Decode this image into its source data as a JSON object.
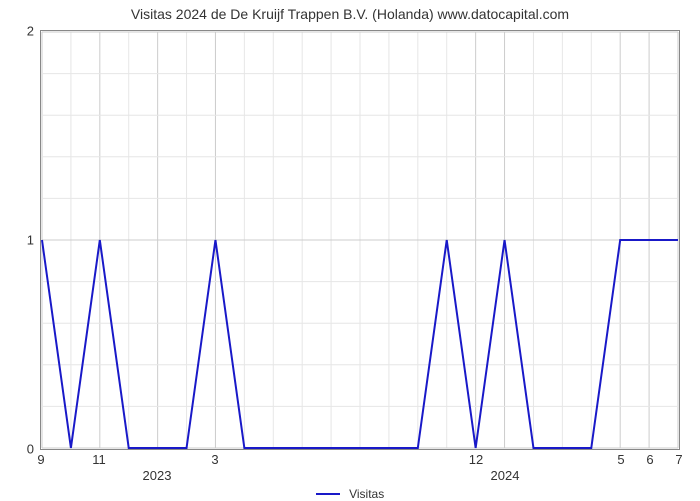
{
  "chart": {
    "type": "line",
    "title": "Visitas 2024 de De Kruijf Trappen B.V. (Holanda) www.datocapital.com",
    "title_fontsize": 14,
    "background_color": "#ffffff",
    "plot_border_color": "#888888",
    "grid_major_color": "#cccccc",
    "grid_minor_color": "#e6e6e6",
    "line_color": "#1919c8",
    "line_width": 2,
    "legend_label": "Visitas",
    "y": {
      "min": 0,
      "max": 2,
      "ticks": [
        0,
        1,
        2
      ],
      "minor_count_between": 4
    },
    "x": {
      "count": 23,
      "tick_labels": {
        "0": "9",
        "2": "11",
        "6": "3",
        "15": "12",
        "20": "5",
        "21": "6",
        "22": "7"
      },
      "year_labels": {
        "4": "2023",
        "16": "2024"
      }
    },
    "values": [
      1,
      0,
      1,
      0,
      0,
      0,
      1,
      0,
      0,
      0,
      0,
      0,
      0,
      0,
      1,
      0,
      1,
      0,
      0,
      0,
      1,
      1,
      1
    ]
  }
}
